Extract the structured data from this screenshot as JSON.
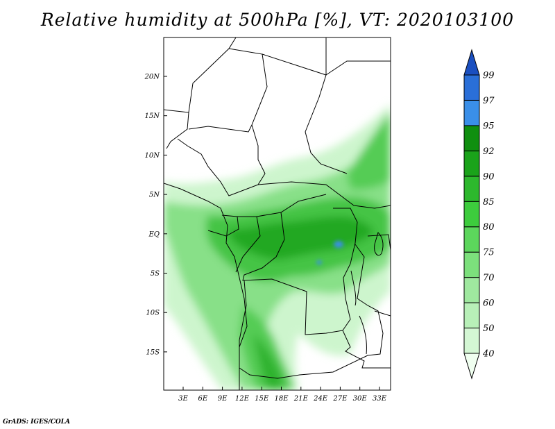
{
  "title": "Relative humidity at 500hPa [%], VT: 2020103100",
  "credit": "GrADS: IGES/COLA",
  "map": {
    "lat_labels": [
      "20N",
      "15N",
      "10N",
      "5N",
      "EQ",
      "5S",
      "10S",
      "15S"
    ],
    "lon_labels": [
      "3E",
      "6E",
      "9E",
      "12E",
      "15E",
      "18E",
      "21E",
      "24E",
      "27E",
      "30E",
      "33E"
    ]
  },
  "colorbar": {
    "labels": [
      "40",
      "50",
      "60",
      "70",
      "75",
      "80",
      "85",
      "90",
      "92",
      "95",
      "97",
      "99"
    ],
    "colors": [
      "#f0fff0",
      "#d4f7d4",
      "#b8f0b8",
      "#9fe89f",
      "#7ce07c",
      "#5cd65c",
      "#3dcc3d",
      "#2db82d",
      "#1aa31a",
      "#0f8f0f",
      "#3a8fe8",
      "#2a6fd8",
      "#1a4fc0"
    ]
  }
}
